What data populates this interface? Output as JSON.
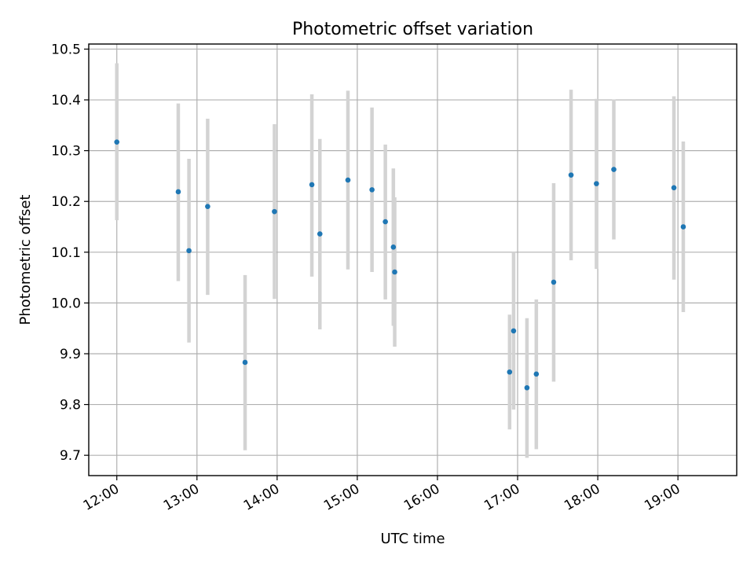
{
  "chart_data": {
    "type": "scatter",
    "title": "Photometric offset variation",
    "xlabel": "UTC time",
    "ylabel": "Photometric offset",
    "xlim": [
      "11:39",
      "19:44"
    ],
    "ylim": [
      9.66,
      10.51
    ],
    "grid": true,
    "x_ticks": [
      "12:00",
      "13:00",
      "14:00",
      "15:00",
      "16:00",
      "17:00",
      "18:00",
      "19:00"
    ],
    "y_ticks": [
      "9.7",
      "9.8",
      "9.9",
      "10.0",
      "10.1",
      "10.2",
      "10.3",
      "10.4",
      "10.5"
    ],
    "point_color": "#1f77b4",
    "errorbar_color": "#d3d3d3",
    "series": [
      {
        "points": [
          {
            "x": "12:00",
            "y": 10.317,
            "lower": 10.163,
            "upper": 10.472
          },
          {
            "x": "12:46",
            "y": 10.219,
            "lower": 10.043,
            "upper": 10.393
          },
          {
            "x": "12:54",
            "y": 10.103,
            "lower": 9.922,
            "upper": 10.284
          },
          {
            "x": "13:08",
            "y": 10.19,
            "lower": 10.016,
            "upper": 10.363
          },
          {
            "x": "13:36",
            "y": 9.883,
            "lower": 9.71,
            "upper": 10.055
          },
          {
            "x": "13:58",
            "y": 10.18,
            "lower": 10.008,
            "upper": 10.352
          },
          {
            "x": "14:26",
            "y": 10.233,
            "lower": 10.052,
            "upper": 10.411
          },
          {
            "x": "14:32",
            "y": 10.136,
            "lower": 9.948,
            "upper": 10.323
          },
          {
            "x": "14:53",
            "y": 10.242,
            "lower": 10.066,
            "upper": 10.418
          },
          {
            "x": "15:11",
            "y": 10.223,
            "lower": 10.061,
            "upper": 10.385
          },
          {
            "x": "15:21",
            "y": 10.16,
            "lower": 10.007,
            "upper": 10.312
          },
          {
            "x": "15:27",
            "y": 10.11,
            "lower": 9.955,
            "upper": 10.265
          },
          {
            "x": "15:28",
            "y": 10.061,
            "lower": 9.914,
            "upper": 10.208
          },
          {
            "x": "16:54",
            "y": 9.864,
            "lower": 9.751,
            "upper": 9.977
          },
          {
            "x": "16:57",
            "y": 9.945,
            "lower": 9.79,
            "upper": 10.1
          },
          {
            "x": "17:07",
            "y": 9.833,
            "lower": 9.695,
            "upper": 9.97
          },
          {
            "x": "17:14",
            "y": 9.86,
            "lower": 9.712,
            "upper": 10.007
          },
          {
            "x": "17:27",
            "y": 10.041,
            "lower": 9.845,
            "upper": 10.236
          },
          {
            "x": "17:40",
            "y": 10.252,
            "lower": 10.084,
            "upper": 10.42
          },
          {
            "x": "17:59",
            "y": 10.235,
            "lower": 10.067,
            "upper": 10.402
          },
          {
            "x": "18:12",
            "y": 10.263,
            "lower": 10.125,
            "upper": 10.401
          },
          {
            "x": "18:57",
            "y": 10.227,
            "lower": 10.046,
            "upper": 10.407
          },
          {
            "x": "19:04",
            "y": 10.15,
            "lower": 9.982,
            "upper": 10.318
          }
        ]
      }
    ]
  }
}
